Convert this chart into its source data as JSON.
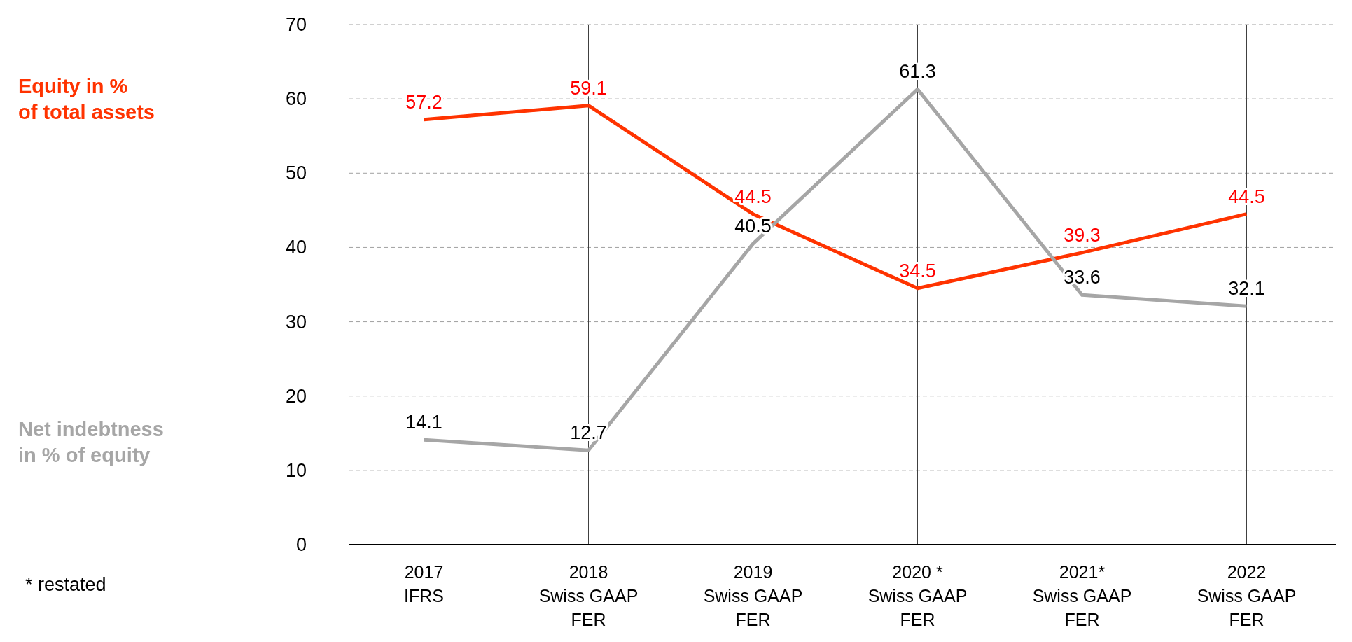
{
  "chart_data": {
    "type": "line",
    "categories": [
      "2017\nIFRS",
      "2018\nSwiss GAAP\nFER",
      "2019\nSwiss GAAP\nFER",
      "2020 *\nSwiss GAAP\nFER",
      "2021*\nSwiss GAAP\nFER",
      "2022\nSwiss GAAP\nFER"
    ],
    "series": [
      {
        "name": "Equity in %\nof total assets",
        "color": "#ff3300",
        "values": [
          57.2,
          59.1,
          44.5,
          34.5,
          39.3,
          44.5
        ]
      },
      {
        "name": "Net indebtness\nin % of equity",
        "color": "#a6a6a6",
        "values": [
          14.1,
          12.7,
          40.5,
          61.3,
          33.6,
          32.1
        ]
      }
    ],
    "ylim": [
      0,
      70
    ],
    "yticks": [
      0,
      10,
      20,
      30,
      40,
      50,
      60,
      70
    ],
    "grid": true,
    "data_labels": true,
    "legend": "left",
    "marker": "none",
    "line_style": "solid",
    "annotations": [
      "* restated"
    ]
  }
}
